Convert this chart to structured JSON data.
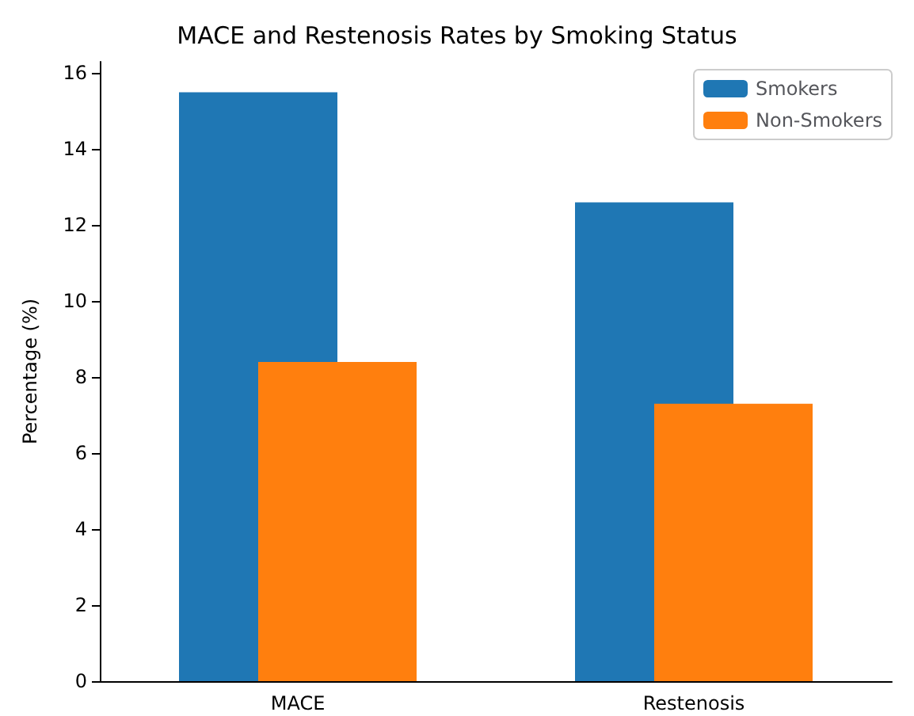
{
  "chart_data": {
    "type": "bar",
    "title": "MACE and Restenosis Rates by Smoking Status",
    "ylabel": "Percentage (%)",
    "categories": [
      "MACE",
      "Restenosis"
    ],
    "series": [
      {
        "name": "Smokers",
        "color": "#1f77b4",
        "values": [
          15.5,
          12.6
        ]
      },
      {
        "name": "Non-Smokers",
        "color": "#ff7f0e",
        "values": [
          8.4,
          7.3
        ]
      }
    ],
    "ylim": [
      0,
      16.3
    ],
    "yticks": [
      0,
      2,
      4,
      6,
      8,
      10,
      12,
      14,
      16
    ],
    "grid": false,
    "legend": "top right"
  }
}
